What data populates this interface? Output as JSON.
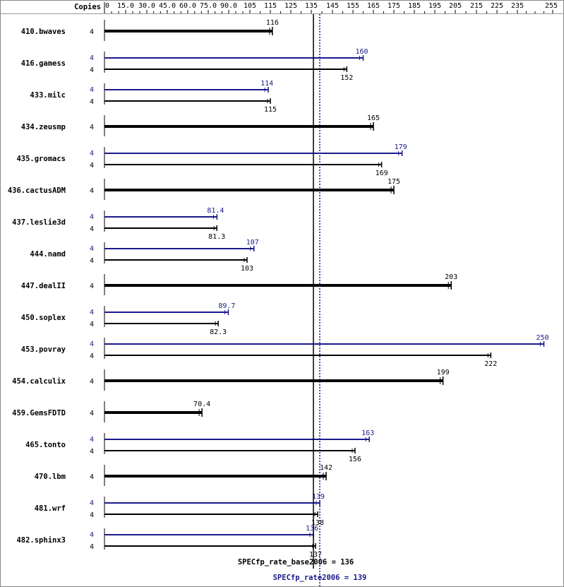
{
  "chart_data": {
    "type": "bar",
    "header": {
      "copies_label": "Copies"
    },
    "ticks": [
      0,
      15.0,
      30.0,
      45.0,
      60.0,
      75.0,
      90.0,
      105,
      115,
      125,
      135,
      145,
      155,
      165,
      175,
      185,
      195,
      205,
      215,
      225,
      235,
      255
    ],
    "tick_labels": [
      "0",
      "15.0",
      "30.0",
      "45.0",
      "60.0",
      "75.0",
      "90.0",
      "105",
      "115",
      "125",
      "135",
      "145",
      "155",
      "165",
      "175",
      "185",
      "195",
      "205",
      "215",
      "225",
      "235",
      "255"
    ],
    "xlim": [
      0,
      255
    ],
    "colors": {
      "base": "#000000",
      "peak": "#1a1a8c"
    },
    "benchmarks": [
      {
        "name": "410.bwaves",
        "copies": "4",
        "base": 116,
        "base_label": "116"
      },
      {
        "name": "416.gamess",
        "copies": "4",
        "peak": 160,
        "peak_label": "160",
        "peak_copies": "4",
        "base": 152,
        "base_label": "152"
      },
      {
        "name": "433.milc",
        "copies": "4",
        "peak": 114,
        "peak_label": "114",
        "peak_copies": "4",
        "base": 115,
        "base_label": "115"
      },
      {
        "name": "434.zeusmp",
        "copies": "4",
        "base": 165,
        "base_label": "165"
      },
      {
        "name": "435.gromacs",
        "copies": "4",
        "peak": 179,
        "peak_label": "179",
        "peak_copies": "4",
        "base": 169,
        "base_label": "169"
      },
      {
        "name": "436.cactusADM",
        "copies": "4",
        "base": 175,
        "base_label": "175"
      },
      {
        "name": "437.leslie3d",
        "copies": "4",
        "peak": 81.4,
        "peak_label": "81.4",
        "peak_copies": "4",
        "base": 81.3,
        "base_label": "81.3"
      },
      {
        "name": "444.namd",
        "copies": "4",
        "peak": 107,
        "peak_label": "107",
        "peak_copies": "4",
        "base": 103,
        "base_label": "103"
      },
      {
        "name": "447.dealII",
        "copies": "4",
        "base": 203,
        "base_label": "203"
      },
      {
        "name": "450.soplex",
        "copies": "4",
        "peak": 89.7,
        "peak_label": "89.7",
        "peak_copies": "4",
        "base": 82.3,
        "base_label": "82.3"
      },
      {
        "name": "453.povray",
        "copies": "4",
        "peak": 250,
        "peak_label": "250",
        "peak_copies": "4",
        "base": 222,
        "base_label": "222"
      },
      {
        "name": "454.calculix",
        "copies": "4",
        "base": 199,
        "base_label": "199"
      },
      {
        "name": "459.GemsFDTD",
        "copies": "4",
        "base": 70.4,
        "base_label": "70.4"
      },
      {
        "name": "465.tonto",
        "copies": "4",
        "peak": 163,
        "peak_label": "163",
        "peak_copies": "4",
        "base": 156,
        "base_label": "156"
      },
      {
        "name": "470.lbm",
        "copies": "4",
        "base": 142,
        "base_label": "142"
      },
      {
        "name": "481.wrf",
        "copies": "4",
        "peak": 139,
        "peak_label": "139",
        "peak_copies": "4",
        "base": 138,
        "base_label": "138"
      },
      {
        "name": "482.sphinx3",
        "copies": "4",
        "peak": 136,
        "peak_label": "136",
        "peak_copies": "4",
        "base": 137,
        "base_label": "137"
      }
    ],
    "reference_lines": {
      "base": {
        "value": 136,
        "label": "SPECfp_rate_base2006 = 136"
      },
      "peak": {
        "value": 139,
        "label": "SPECfp_rate2006 = 139"
      }
    }
  }
}
